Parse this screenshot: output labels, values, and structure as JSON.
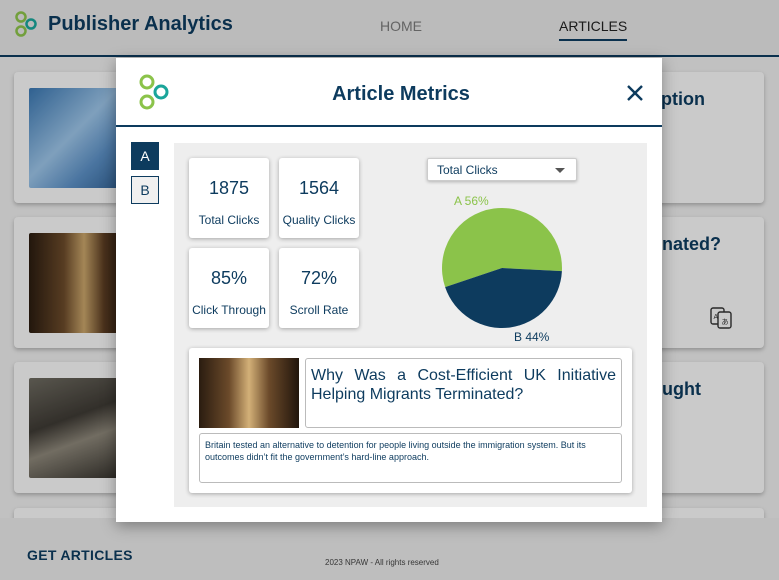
{
  "app": {
    "title": "Publisher Analytics",
    "nav": {
      "home": "HOME",
      "articles": "ARTICLES"
    }
  },
  "background_cards": [
    {
      "title_fragment": "umption"
    },
    {
      "title_fragment": "rminated?"
    },
    {
      "title_fragment": "thought"
    }
  ],
  "footer": {
    "get_articles": "GET ARTICLES",
    "copyright": "2023 NPAW - All rights reserved"
  },
  "modal": {
    "title": "Article Metrics",
    "close_icon": "close-icon",
    "variants": [
      {
        "label": "A",
        "active": true
      },
      {
        "label": "B",
        "active": false
      }
    ],
    "metrics": [
      {
        "value": "1875",
        "label": "Total Clicks"
      },
      {
        "value": "1564",
        "label": "Quality Clicks"
      },
      {
        "value": "85%",
        "label": "Click Through"
      },
      {
        "value": "72%",
        "label": "Scroll Rate"
      }
    ],
    "metric_select": {
      "selected": "Total Clicks"
    },
    "article": {
      "title": "Why Was a Cost-Efficient UK Initiative Helping Migrants Terminated?",
      "description": "Britain tested an alternative to detention for people living outside the immigration system. But its outcomes didn’t fit the government’s hard-line approach."
    }
  },
  "chart_data": {
    "type": "pie",
    "slices": [
      {
        "label": "A 56%",
        "value": 56,
        "color": "#8bc34a"
      },
      {
        "label": "B 44%",
        "value": 44,
        "color": "#0d3b5e"
      }
    ]
  },
  "colors": {
    "brand": "#0d3b5e",
    "accent_green": "#8bc34a",
    "logo_teal": "#1aa59a"
  }
}
